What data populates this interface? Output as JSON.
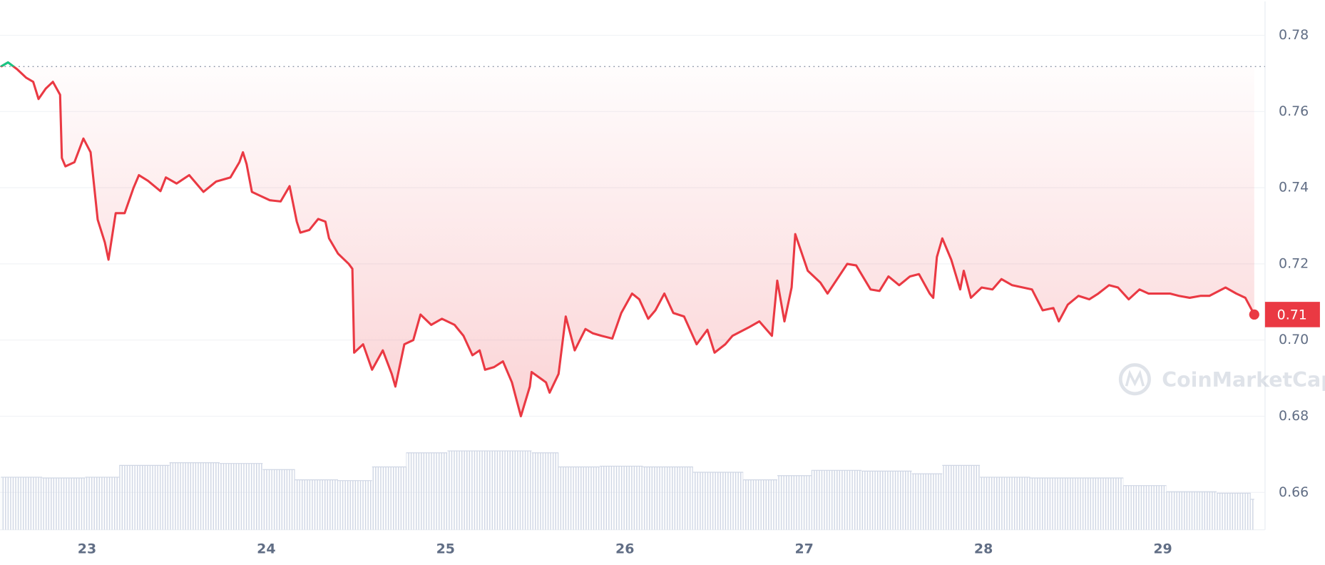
{
  "chart_data": {
    "type": "line",
    "xlim": [
      22.515,
      29.57
    ],
    "ylim": [
      0.6502,
      0.7889
    ],
    "xticks": [
      23,
      24,
      25,
      26,
      27,
      28,
      29
    ],
    "yticks": [
      0.66,
      0.68,
      {
        "value": 0.7,
        "label": "0.70"
      },
      0.72,
      0.74,
      0.76,
      0.78
    ],
    "grid": true,
    "reference_line": 0.7718,
    "up_color": "#16c784",
    "last_value_label": "0.71",
    "watermark": "CoinMarketCap",
    "series": [
      {
        "color": "#ea3943",
        "x": [
          22.52,
          22.56,
          22.61,
          22.66,
          22.7,
          22.73,
          22.77,
          22.81,
          22.85,
          22.86,
          22.88,
          22.93,
          22.98,
          23.02,
          23.06,
          23.1,
          23.12,
          23.16,
          23.21,
          23.26,
          23.29,
          23.34,
          23.41,
          23.44,
          23.5,
          23.57,
          23.65,
          23.72,
          23.8,
          23.85,
          23.87,
          23.89,
          23.92,
          23.97,
          24.02,
          24.08,
          24.13,
          24.17,
          24.19,
          24.24,
          24.29,
          24.33,
          24.35,
          24.4,
          24.46,
          24.48,
          24.49,
          24.54,
          24.59,
          24.65,
          24.7,
          24.72,
          24.77,
          24.82,
          24.86,
          24.92,
          24.98,
          25.05,
          25.1,
          25.15,
          25.19,
          25.22,
          25.27,
          25.32,
          25.37,
          25.42,
          25.47,
          25.48,
          25.56,
          25.58,
          25.63,
          25.67,
          25.72,
          25.78,
          25.82,
          25.87,
          25.93,
          25.98,
          26.04,
          26.08,
          26.13,
          26.17,
          26.22,
          26.27,
          26.33,
          26.4,
          26.46,
          26.5,
          26.56,
          26.6,
          26.69,
          26.75,
          26.82,
          26.85,
          26.89,
          26.93,
          26.95,
          27.02,
          27.09,
          27.13,
          27.24,
          27.29,
          27.37,
          27.42,
          27.47,
          27.53,
          27.59,
          27.64,
          27.7,
          27.72,
          27.74,
          27.77,
          27.82,
          27.87,
          27.89,
          27.93,
          27.99,
          28.05,
          28.1,
          28.16,
          28.22,
          28.27,
          28.33,
          28.39,
          28.42,
          28.47,
          28.53,
          28.59,
          28.64,
          28.7,
          28.75,
          28.81,
          28.87,
          28.92,
          28.98,
          29.04,
          29.09,
          29.15,
          29.21,
          29.26,
          29.35,
          29.41,
          29.46,
          29.51
        ],
        "values": [
          0.7718,
          0.7729,
          0.7711,
          0.7689,
          0.7678,
          0.7633,
          0.766,
          0.7678,
          0.7644,
          0.7478,
          0.7456,
          0.7467,
          0.7529,
          0.7493,
          0.7316,
          0.7256,
          0.7211,
          0.7333,
          0.7333,
          0.74,
          0.7433,
          0.7418,
          0.7391,
          0.7427,
          0.7411,
          0.7433,
          0.7389,
          0.7416,
          0.7427,
          0.7467,
          0.7493,
          0.7462,
          0.7389,
          0.7378,
          0.7367,
          0.7364,
          0.7404,
          0.7311,
          0.7282,
          0.7289,
          0.7318,
          0.7311,
          0.7267,
          0.7227,
          0.72,
          0.7187,
          0.6967,
          0.6989,
          0.6922,
          0.6973,
          0.6911,
          0.6878,
          0.6989,
          0.7,
          0.7067,
          0.704,
          0.7056,
          0.704,
          0.7011,
          0.696,
          0.6973,
          0.6922,
          0.6929,
          0.6944,
          0.6889,
          0.68,
          0.6878,
          0.6916,
          0.6889,
          0.6862,
          0.6911,
          0.7062,
          0.6973,
          0.7029,
          0.7018,
          0.7011,
          0.7004,
          0.7071,
          0.7122,
          0.7107,
          0.7056,
          0.7078,
          0.7122,
          0.7071,
          0.7062,
          0.6989,
          0.7027,
          0.6967,
          0.6989,
          0.7011,
          0.7033,
          0.7049,
          0.7011,
          0.7156,
          0.7049,
          0.7138,
          0.7278,
          0.7182,
          0.7151,
          0.7122,
          0.72,
          0.7196,
          0.7133,
          0.7129,
          0.7167,
          0.7144,
          0.7167,
          0.7173,
          0.7122,
          0.7111,
          0.7218,
          0.7267,
          0.7211,
          0.7133,
          0.7182,
          0.7111,
          0.7138,
          0.7133,
          0.716,
          0.7144,
          0.7138,
          0.7133,
          0.7078,
          0.7084,
          0.7049,
          0.7093,
          0.7116,
          0.7107,
          0.7122,
          0.7144,
          0.7138,
          0.7107,
          0.7133,
          0.7122,
          0.7122,
          0.7122,
          0.7116,
          0.7111,
          0.7116,
          0.7116,
          0.7138,
          0.7122,
          0.7111,
          0.7067
        ]
      }
    ],
    "volume": {
      "color": "#cfd6e4",
      "x": [
        22.52,
        22.75,
        22.99,
        23.18,
        23.46,
        23.74,
        23.98,
        24.16,
        24.4,
        24.59,
        24.78,
        25.01,
        25.25,
        25.48,
        25.63,
        25.86,
        26.1,
        26.38,
        26.66,
        26.85,
        27.04,
        27.32,
        27.6,
        27.77,
        27.98,
        28.26,
        28.55,
        28.78,
        29.02,
        29.3,
        29.49
      ],
      "values": [
        0.664,
        0.6638,
        0.664,
        0.6671,
        0.6678,
        0.6676,
        0.666,
        0.6633,
        0.6631,
        0.6667,
        0.6704,
        0.6709,
        0.6709,
        0.6704,
        0.6667,
        0.6669,
        0.6667,
        0.6653,
        0.6633,
        0.6644,
        0.6658,
        0.6656,
        0.6649,
        0.6671,
        0.664,
        0.6638,
        0.6638,
        0.6618,
        0.6602,
        0.6598,
        0.6582
      ]
    }
  }
}
